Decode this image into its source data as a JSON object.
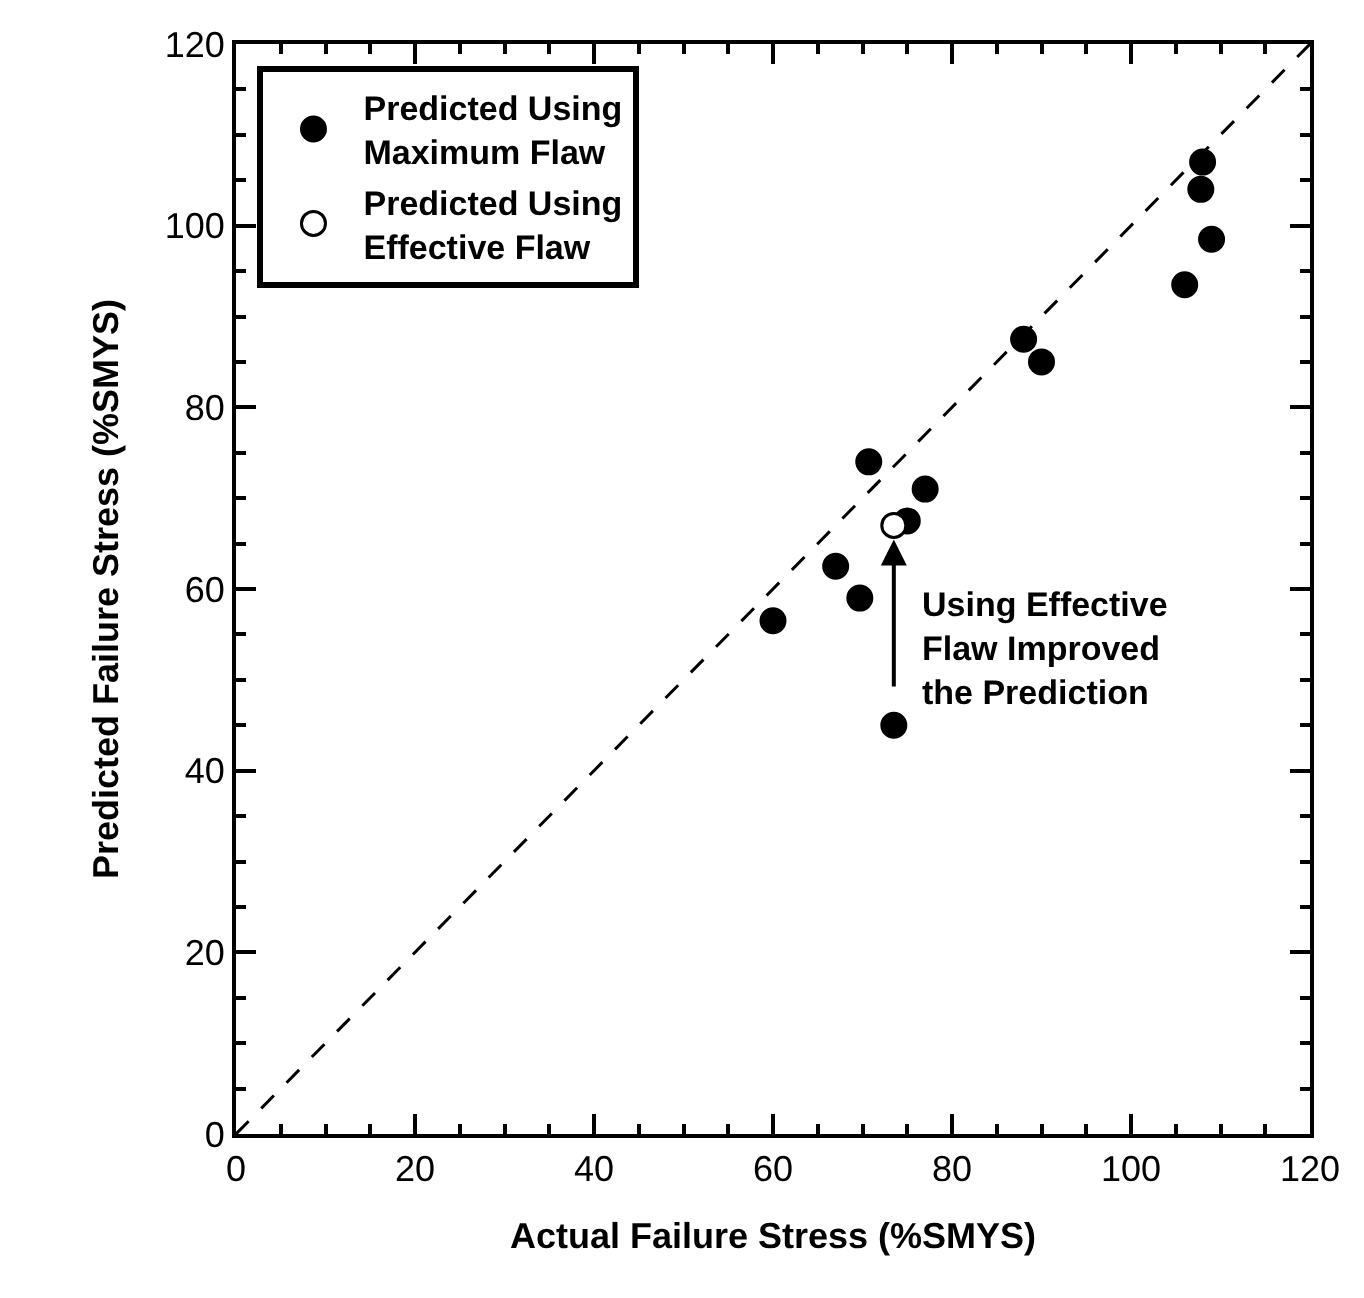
{
  "chart_data": {
    "type": "scatter",
    "xlabel": "Actual Failure Stress (%SMYS)",
    "ylabel": "Predicted Failure Stress (%SMYS)",
    "xlim": [
      0,
      120
    ],
    "ylim": [
      0,
      120
    ],
    "xticks": [
      0,
      20,
      40,
      60,
      80,
      100,
      120
    ],
    "yticks": [
      0,
      20,
      40,
      60,
      80,
      100,
      120
    ],
    "grid": false,
    "legend": "top left",
    "marker": "circle",
    "series": [
      {
        "name": "Predicted Using Maximum Flaw",
        "color": "#000000",
        "x": [
          60,
          67,
          69.7,
          70.7,
          75,
          77,
          73.5,
          88,
          90,
          106,
          107.8,
          108,
          109
        ],
        "values": [
          56.5,
          62.5,
          59,
          74,
          67.5,
          71,
          45,
          87.5,
          85,
          93.5,
          104,
          107,
          98.5
        ]
      },
      {
        "name": "Predicted Using Effective Flaw",
        "color": "#ffffff",
        "x": [
          73.5
        ],
        "values": [
          67
        ]
      },
      {
        "type": "line",
        "color": "#000000",
        "line_style": "dashed",
        "marker": "none",
        "x": [
          0,
          120
        ],
        "values": [
          0,
          120
        ]
      }
    ],
    "annotations": [
      {
        "text": "Using Effective Flaw Improved the Prediction",
        "x": 73.5,
        "y": 67
      }
    ]
  }
}
